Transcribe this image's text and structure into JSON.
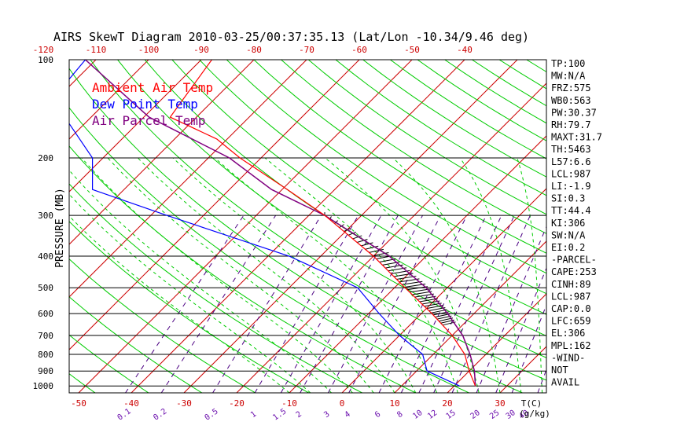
{
  "title": "AIRS SkewT Diagram 2010-03-25/00:37:35.13 (Lat/Lon -10.34/9.46 deg)",
  "ylabel": "PRESSURE (MB)",
  "legend": [
    {
      "label": "Ambient Air Temp",
      "color": "#ff0000"
    },
    {
      "label": "Dew Point Temp",
      "color": "#0000ff"
    },
    {
      "label": "Air Parcel Temp",
      "color": "#800080"
    }
  ],
  "colors": {
    "isotherm": "#cc0000",
    "dry_adiabat": "#00cc00",
    "moist_adiabat": "#00cc00",
    "mixing_ratio": "#4b0082",
    "isobar": "#000000",
    "tick_labels": "#cc0000",
    "mixing_labels": "#6a0dad"
  },
  "chart_data": {
    "type": "skewt",
    "pressure_ticks": [
      "100",
      "200",
      "300",
      "400",
      "500",
      "600",
      "700",
      "800",
      "900",
      "1000"
    ],
    "top_temp_ticks": [
      "-120",
      "-110",
      "-100",
      "-90",
      "-80",
      "-70",
      "-60",
      "-50",
      "-40"
    ],
    "bottom_temp_ticks": [
      "-50",
      "-40",
      "-30",
      "-20",
      "-10",
      "0",
      "10",
      "20",
      "30"
    ],
    "bottom_unit_label": "T(C)",
    "mixing_ratio_ticks": [
      "0.1",
      "0.2",
      "0.5",
      "1",
      "1.5",
      "2",
      "3",
      "4",
      "6",
      "8",
      "10",
      "12",
      "15",
      "20",
      "25",
      "30",
      "40"
    ],
    "mixing_unit_label": "(g/kg)",
    "ambient_temp": [
      {
        "p": 100,
        "t": -88
      },
      {
        "p": 150,
        "t": -85
      },
      {
        "p": 175,
        "t": -72
      },
      {
        "p": 200,
        "t": -64
      },
      {
        "p": 250,
        "t": -49
      },
      {
        "p": 300,
        "t": -37
      },
      {
        "p": 400,
        "t": -20
      },
      {
        "p": 500,
        "t": -8
      },
      {
        "p": 600,
        "t": 2
      },
      {
        "p": 700,
        "t": 10
      },
      {
        "p": 800,
        "t": 16
      },
      {
        "p": 900,
        "t": 20
      },
      {
        "p": 1000,
        "t": 24
      }
    ],
    "dew_point": [
      {
        "p": 100,
        "t": -112
      },
      {
        "p": 125,
        "t": -111
      },
      {
        "p": 150,
        "t": -105
      },
      {
        "p": 200,
        "t": -92
      },
      {
        "p": 250,
        "t": -86
      },
      {
        "p": 300,
        "t": -67
      },
      {
        "p": 400,
        "t": -36
      },
      {
        "p": 500,
        "t": -17
      },
      {
        "p": 600,
        "t": -8
      },
      {
        "p": 700,
        "t": 0
      },
      {
        "p": 800,
        "t": 8
      },
      {
        "p": 900,
        "t": 12
      },
      {
        "p": 1000,
        "t": 21
      }
    ],
    "parcel_temp": [
      {
        "p": 100,
        "t": -112
      },
      {
        "p": 150,
        "t": -89
      },
      {
        "p": 200,
        "t": -66
      },
      {
        "p": 250,
        "t": -52
      },
      {
        "p": 300,
        "t": -37
      },
      {
        "p": 400,
        "t": -17
      },
      {
        "p": 500,
        "t": -4
      },
      {
        "p": 600,
        "t": 5
      },
      {
        "p": 700,
        "t": 12
      },
      {
        "p": 800,
        "t": 17
      },
      {
        "p": 900,
        "t": 21
      },
      {
        "p": 1000,
        "t": 24
      }
    ],
    "cape_shading": {
      "p_top": 300,
      "p_bottom": 659
    }
  },
  "stats": [
    "TP:100",
    "MW:N/A",
    "FRZ:575",
    "WB0:563",
    "PW:30.37",
    "RH:79.7",
    "MAXT:31.7",
    "TH:5463",
    "L57:6.6",
    "LCL:987",
    "LI:-1.9",
    "SI:0.3",
    "TT:44.4",
    "KI:306",
    "SW:N/A",
    "EI:0.2",
    "-PARCEL-",
    "CAPE:253",
    "CINH:89",
    "LCL:987",
    "CAP:0.0",
    "LFC:659",
    "EL:306",
    "MPL:162",
    "-WIND-",
    "NOT",
    "AVAIL"
  ]
}
